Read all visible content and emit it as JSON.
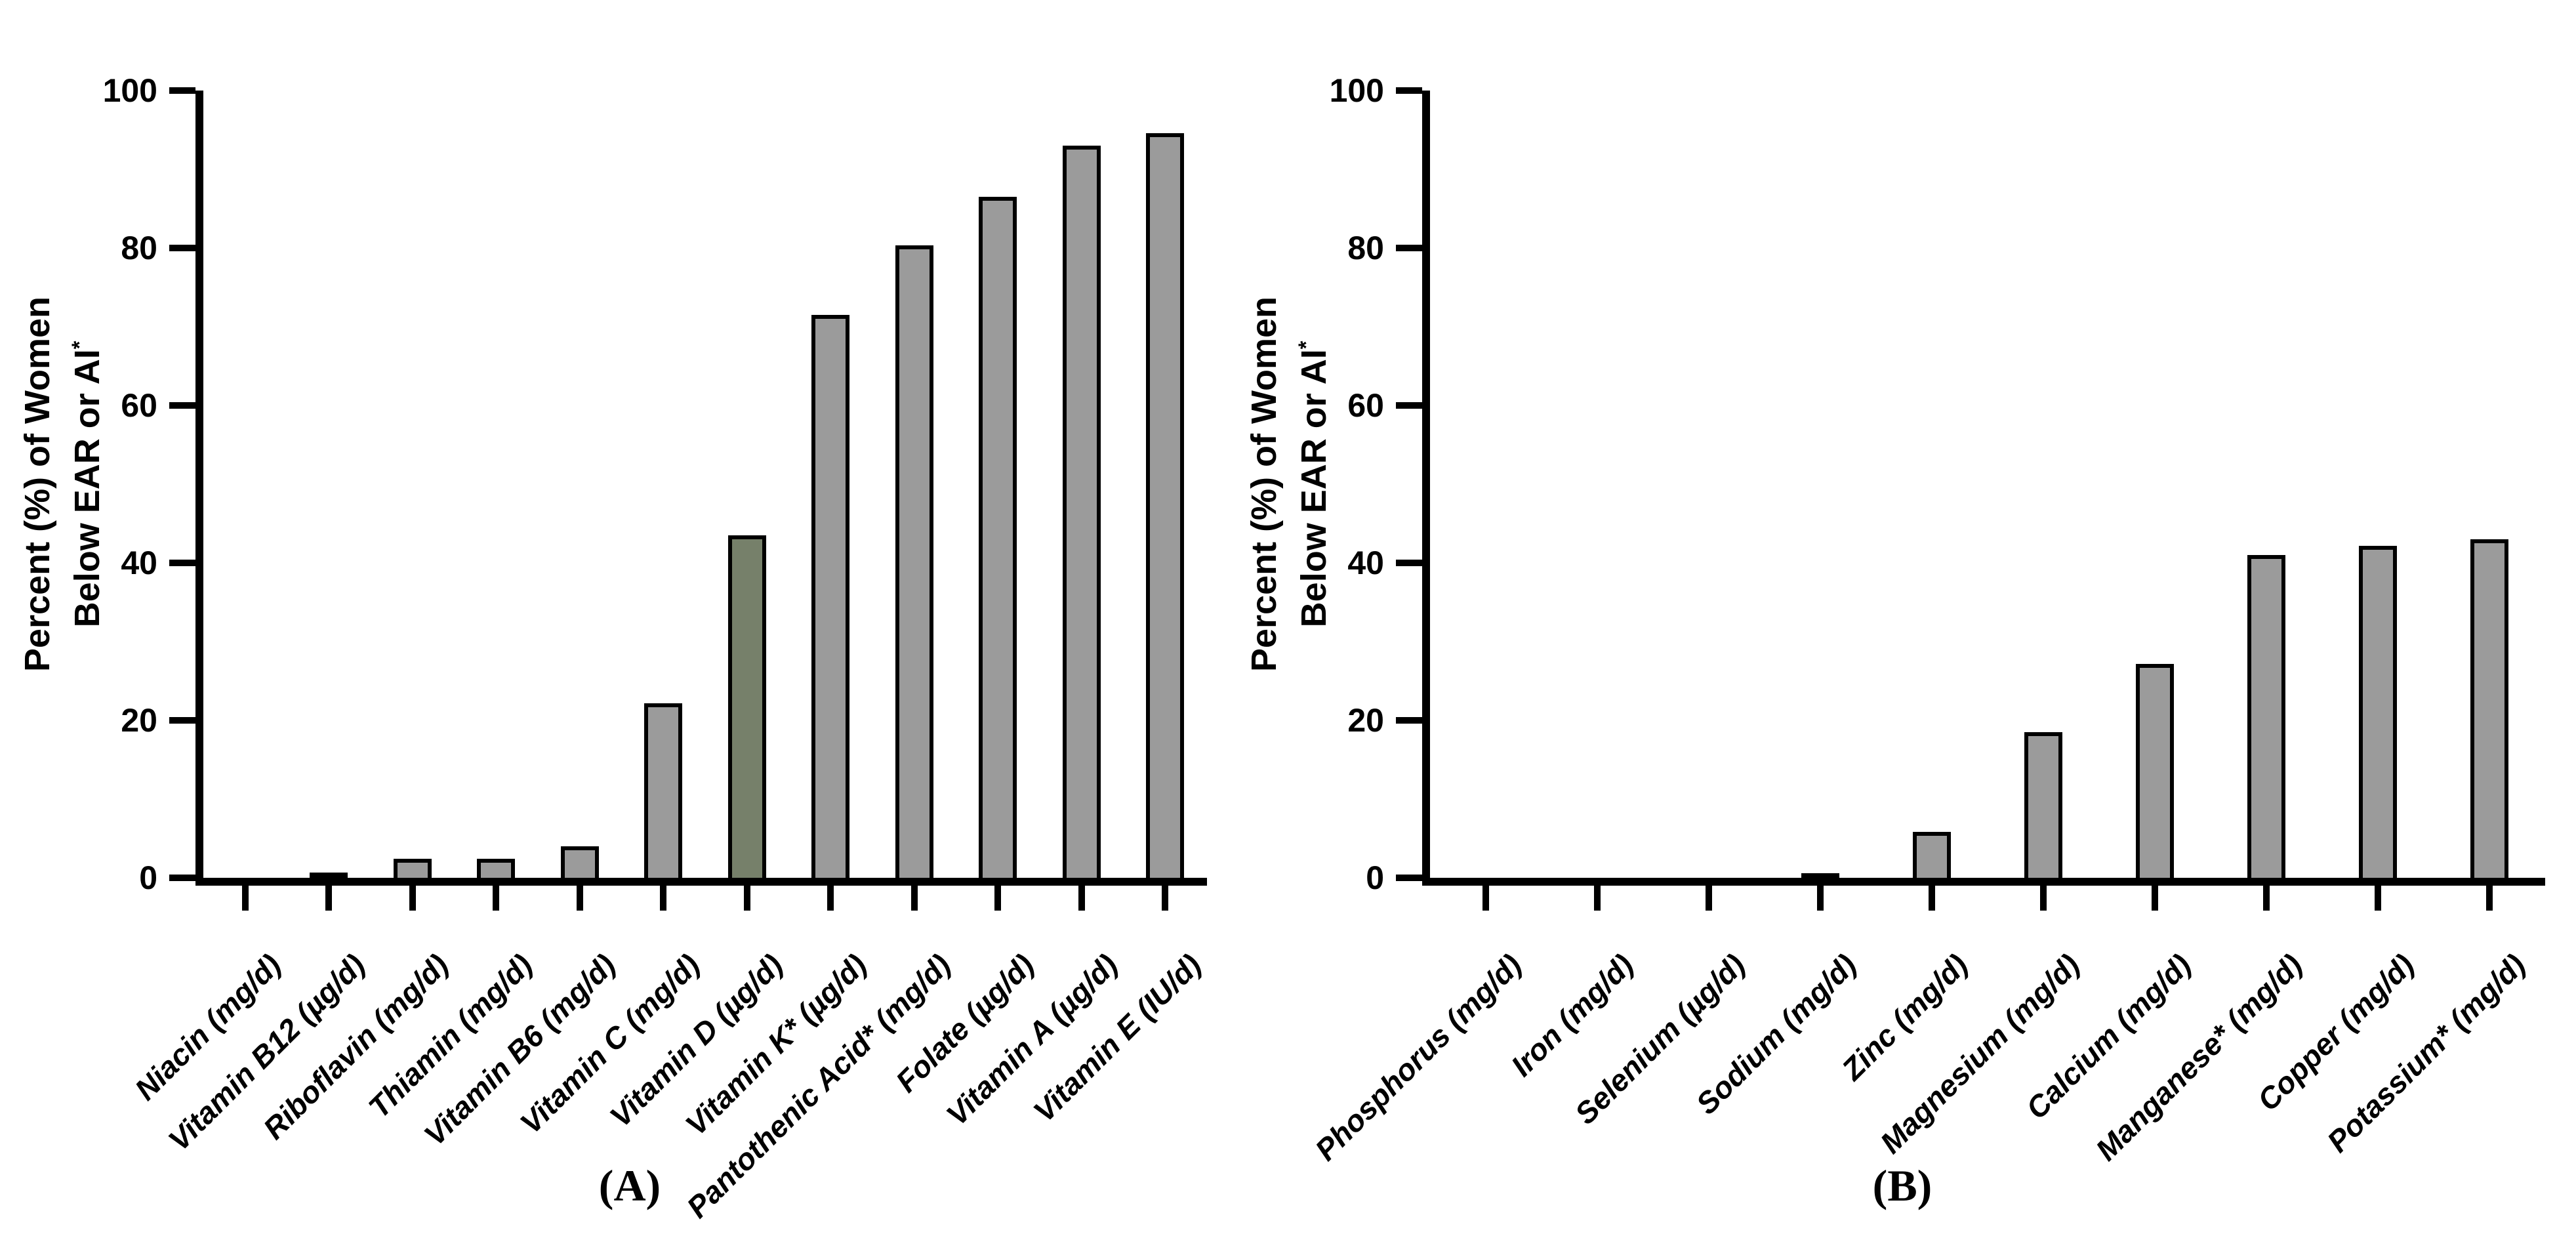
{
  "chart_data": [
    {
      "type": "bar",
      "panel_label": "(A)",
      "title": "",
      "xlabel": "",
      "ylabel_line1": "Percent (%) of Women",
      "ylabel_line2": "Below EAR or AI",
      "ylabel_sup": "*",
      "ylim": [
        0,
        100
      ],
      "yticks": [
        0,
        20,
        40,
        60,
        80,
        100
      ],
      "grid": "off",
      "legend": "none",
      "categories": [
        "Niacin (mg/d)",
        "Vitamin B12 (µg/d)",
        "Riboflavin (mg/d)",
        "Thiamin (mg/d)",
        "Vitamin B6 (mg/d)",
        "Vitamin C (mg/d)",
        "Vitamin D (µg/d)",
        "Vitamin K* (µg/d)",
        "Pantothenic Acid* (mg/d)",
        "Folate (µg/d)",
        "Vitamin A (µg/d)",
        "Vitamin E (IU/d)"
      ],
      "values": [
        0,
        0.7,
        2.4,
        2.4,
        4.0,
        22.2,
        43.5,
        71.5,
        80.3,
        86.5,
        93.0,
        94.6
      ],
      "bar_colors": [
        "#9b9b9b",
        "#9b9b9b",
        "#9b9b9b",
        "#9b9b9b",
        "#9b9b9b",
        "#9b9b9b",
        "#76806a",
        "#9b9b9b",
        "#9b9b9b",
        "#9b9b9b",
        "#9b9b9b",
        "#9b9b9b"
      ],
      "bar_border_color": "#000000"
    },
    {
      "type": "bar",
      "panel_label": "(B)",
      "title": "",
      "xlabel": "",
      "ylabel_line1": "Percent (%) of Women",
      "ylabel_line2": "Below EAR or AI",
      "ylabel_sup": "*",
      "ylim": [
        0,
        100
      ],
      "yticks": [
        0,
        20,
        40,
        60,
        80,
        100
      ],
      "grid": "off",
      "legend": "none",
      "categories": [
        "Phosphorus (mg/d)",
        "Iron (mg/d)",
        "Selenium (µg/d)",
        "Sodium (mg/d)",
        "Zinc (mg/d)",
        "Magnesium (mg/d)",
        "Calcium (mg/d)",
        "Manganese* (mg/d)",
        "Copper (mg/d)",
        "Potassium* (mg/d)"
      ],
      "values": [
        0,
        0,
        0,
        0.6,
        5.8,
        18.5,
        27.2,
        41.0,
        42.2,
        43.0
      ],
      "bar_colors": [
        "#9b9b9b",
        "#9b9b9b",
        "#9b9b9b",
        "#9b9b9b",
        "#9b9b9b",
        "#9b9b9b",
        "#9b9b9b",
        "#9b9b9b",
        "#9b9b9b",
        "#9b9b9b"
      ],
      "bar_border_color": "#000000"
    }
  ]
}
